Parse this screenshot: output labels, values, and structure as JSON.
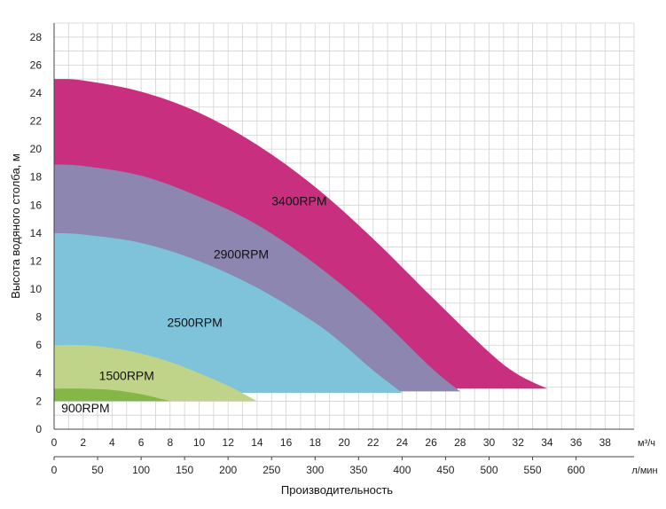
{
  "chart_data": {
    "type": "area",
    "ylabel": "Высота водяного столба, м",
    "xlabel": "Производительность",
    "x_unit": "м³/ч",
    "x2_unit": "л/мин",
    "xlim": [
      0,
      40
    ],
    "ylim": [
      0,
      29
    ],
    "x_ticks": [
      0,
      2,
      4,
      6,
      8,
      10,
      12,
      14,
      16,
      18,
      20,
      22,
      24,
      26,
      28,
      30,
      32,
      34,
      36,
      38
    ],
    "x2_ticks": [
      0,
      50,
      100,
      150,
      200,
      250,
      300,
      350,
      400,
      450,
      500,
      550,
      600
    ],
    "y_ticks": [
      0,
      2,
      4,
      6,
      8,
      10,
      12,
      14,
      16,
      18,
      20,
      22,
      24,
      26,
      28
    ],
    "grid": true,
    "series": [
      {
        "name": "3400RPM",
        "color": "#c8307f",
        "x": [
          0,
          2,
          6,
          10,
          14,
          18,
          22,
          26,
          30,
          32,
          34
        ],
        "y": [
          25,
          24.9,
          24.1,
          22.6,
          20.3,
          17.3,
          13.6,
          9.5,
          5.5,
          3.9,
          2.9
        ],
        "base": 2.9
      },
      {
        "name": "2900RPM",
        "color": "#8c86b0",
        "x": [
          0,
          2,
          6,
          10,
          14,
          18,
          22,
          26,
          28
        ],
        "y": [
          18.9,
          18.8,
          18.1,
          16.6,
          14.6,
          11.8,
          8.4,
          4.4,
          2.7
        ],
        "base": 2.7
      },
      {
        "name": "2500RPM",
        "color": "#7fc3db",
        "x": [
          0,
          2,
          6,
          10,
          14,
          18,
          20,
          22,
          24
        ],
        "y": [
          14,
          13.9,
          13.3,
          12,
          10.1,
          7.6,
          6,
          4.2,
          2.6
        ],
        "base": 2.6
      },
      {
        "name": "1500RPM",
        "color": "#c0d489",
        "x": [
          0,
          2,
          4,
          6,
          8,
          10,
          12,
          14
        ],
        "y": [
          6,
          6,
          5.8,
          5.4,
          4.8,
          4,
          3.1,
          2
        ],
        "base": 2
      },
      {
        "name": "900RPM",
        "color": "#84b648",
        "x": [
          0,
          2,
          4,
          6,
          8
        ],
        "y": [
          2.9,
          2.9,
          2.8,
          2.5,
          2
        ],
        "base": 2
      }
    ]
  }
}
